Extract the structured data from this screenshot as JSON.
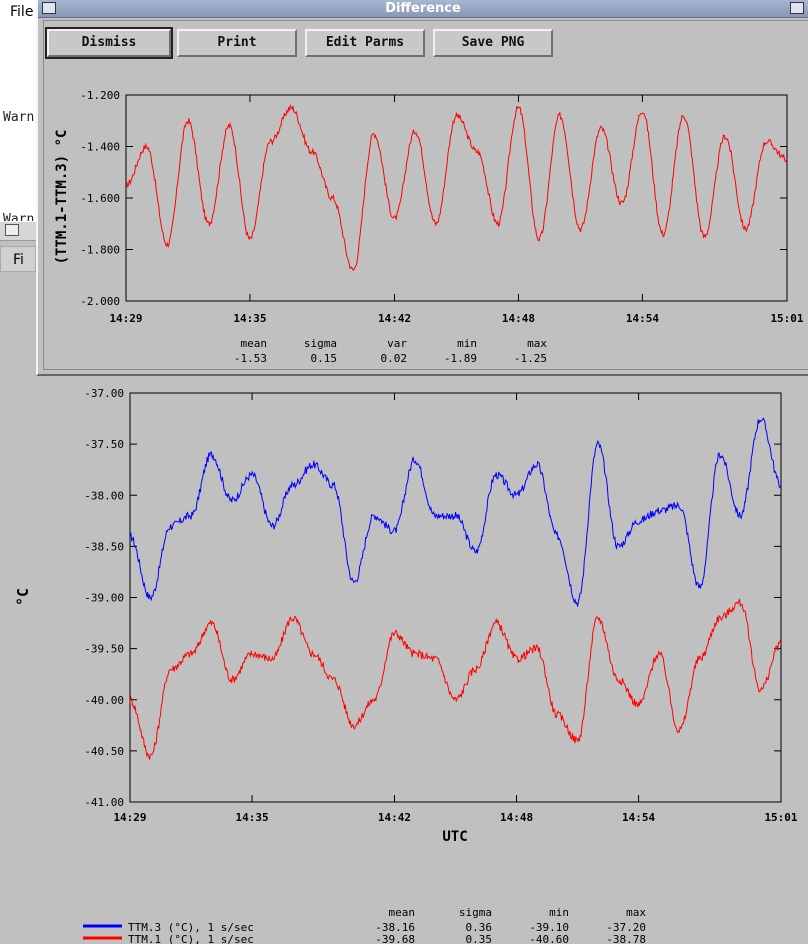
{
  "background_window": {
    "menu_file": "File",
    "warn_1": "Warn",
    "warn_2": "Warn",
    "menu_fi": "Fi"
  },
  "dialog": {
    "title": "Difference",
    "buttons": {
      "dismiss": "Dismiss",
      "print": "Print",
      "edit_parms": "Edit Parms",
      "save_png": "Save PNG"
    }
  },
  "colors": {
    "series_blue": "#0000ff",
    "series_red": "#ff0000",
    "plot_bg": "#c0c0c0",
    "titlebar": "#8f9fbe"
  },
  "diff_stats": {
    "headers": [
      "mean",
      "sigma",
      "var",
      "min",
      "max"
    ],
    "values": [
      "-1.53",
      "0.15",
      "0.02",
      "-1.89",
      "-1.25"
    ]
  },
  "main_stats": {
    "headers": [
      "mean",
      "sigma",
      "min",
      "max"
    ],
    "rows": [
      {
        "label": "TTM.3 (°C), 1 s/sec",
        "values": [
          "-38.16",
          "0.36",
          "-39.10",
          "-37.20"
        ]
      },
      {
        "label": "TTM.1 (°C), 1 s/sec",
        "values": [
          "-39.68",
          "0.35",
          "-40.60",
          "-38.78"
        ]
      }
    ]
  },
  "chart_data": [
    {
      "type": "line",
      "ylabel": "(TTM.1-TTM.3) °C",
      "xlabel": "",
      "ylim": [
        -2.0,
        -1.2
      ],
      "yticks": [
        "-1.200",
        "-1.400",
        "-1.600",
        "-1.800",
        "-2.000"
      ],
      "xlim": [
        "14:29",
        "15:01"
      ],
      "xticks": [
        "14:29",
        "14:35",
        "14:42",
        "14:48",
        "14:54",
        "15:01"
      ],
      "grid": false,
      "series": [
        {
          "x": [
            "14:29",
            "14:30",
            "14:31",
            "14:32",
            "14:33",
            "14:34",
            "14:35",
            "14:36",
            "14:37",
            "14:38",
            "14:39",
            "14:40",
            "14:41",
            "14:42",
            "14:43",
            "14:44",
            "14:45",
            "14:46",
            "14:47",
            "14:48",
            "14:49",
            "14:50",
            "14:51",
            "14:52",
            "14:53",
            "14:54",
            "14:55",
            "14:56",
            "14:57",
            "14:58",
            "14:59",
            "15:00",
            "15:01"
          ],
          "values": [
            -1.55,
            -1.4,
            -1.78,
            -1.3,
            -1.7,
            -1.32,
            -1.76,
            -1.38,
            -1.25,
            -1.42,
            -1.6,
            -1.88,
            -1.35,
            -1.68,
            -1.34,
            -1.7,
            -1.28,
            -1.42,
            -1.7,
            -1.25,
            -1.76,
            -1.28,
            -1.72,
            -1.33,
            -1.62,
            -1.26,
            -1.74,
            -1.28,
            -1.75,
            -1.36,
            -1.72,
            -1.38,
            -1.45
          ]
        }
      ]
    },
    {
      "type": "line",
      "ylabel": "°C",
      "xlabel": "UTC",
      "ylim": [
        -41.0,
        -37.0
      ],
      "yticks": [
        "-37.00",
        "-37.50",
        "-38.00",
        "-38.50",
        "-39.00",
        "-39.50",
        "-40.00",
        "-40.50",
        "-41.00"
      ],
      "xlim": [
        "14:29",
        "15:01"
      ],
      "xticks": [
        "14:29",
        "14:35",
        "14:42",
        "14:48",
        "14:54",
        "15:01"
      ],
      "grid": false,
      "series": [
        {
          "name": "TTM.3 (°C), 1 s/sec",
          "x": [
            "14:29",
            "14:30",
            "14:31",
            "14:32",
            "14:33",
            "14:34",
            "14:35",
            "14:36",
            "14:37",
            "14:38",
            "14:39",
            "14:40",
            "14:41",
            "14:42",
            "14:43",
            "14:44",
            "14:45",
            "14:46",
            "14:47",
            "14:48",
            "14:49",
            "14:50",
            "14:51",
            "14:52",
            "14:53",
            "14:54",
            "14:55",
            "14:56",
            "14:57",
            "14:58",
            "14:59",
            "15:00",
            "15:01"
          ],
          "values": [
            -38.4,
            -39.0,
            -38.3,
            -38.2,
            -37.6,
            -38.05,
            -37.8,
            -38.3,
            -37.9,
            -37.7,
            -37.9,
            -38.85,
            -38.2,
            -38.35,
            -37.65,
            -38.2,
            -38.2,
            -38.55,
            -37.8,
            -38.0,
            -37.7,
            -38.4,
            -39.05,
            -37.5,
            -38.5,
            -38.25,
            -38.15,
            -38.1,
            -38.9,
            -37.6,
            -38.2,
            -37.25,
            -37.9
          ]
        },
        {
          "name": "TTM.1 (°C), 1 s/sec",
          "x": [
            "14:29",
            "14:30",
            "14:31",
            "14:32",
            "14:33",
            "14:34",
            "14:35",
            "14:36",
            "14:37",
            "14:38",
            "14:39",
            "14:40",
            "14:41",
            "14:42",
            "14:43",
            "14:44",
            "14:45",
            "14:46",
            "14:47",
            "14:48",
            "14:49",
            "14:50",
            "14:51",
            "14:52",
            "14:53",
            "14:54",
            "14:55",
            "14:56",
            "14:57",
            "14:58",
            "14:59",
            "15:00",
            "15:01"
          ],
          "values": [
            -40.0,
            -40.55,
            -39.7,
            -39.55,
            -39.25,
            -39.8,
            -39.55,
            -39.6,
            -39.2,
            -39.55,
            -39.8,
            -40.25,
            -40.0,
            -39.35,
            -39.55,
            -39.6,
            -40.0,
            -39.7,
            -39.25,
            -39.6,
            -39.5,
            -40.15,
            -40.4,
            -39.2,
            -39.8,
            -40.05,
            -39.55,
            -40.3,
            -39.6,
            -39.2,
            -39.05,
            -39.9,
            -39.45
          ]
        }
      ]
    }
  ]
}
